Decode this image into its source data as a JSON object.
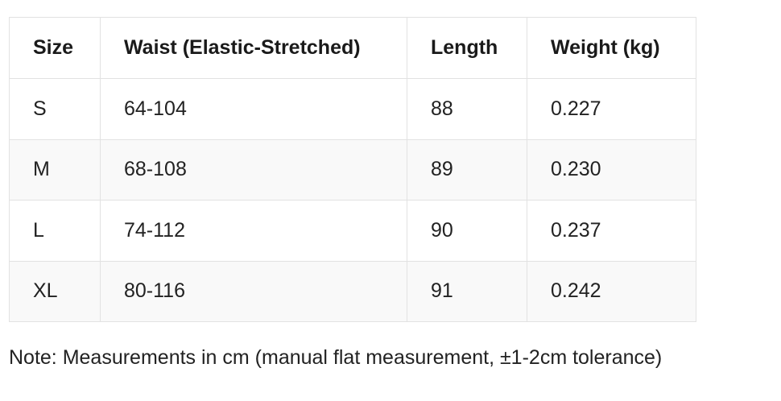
{
  "table": {
    "header": [
      "Size",
      "Waist (Elastic-Stretched)",
      "Length",
      "Weight (kg)"
    ],
    "rows": [
      [
        "S",
        "64-104",
        "88",
        "0.227"
      ],
      [
        "M",
        "68-108",
        "89",
        "0.230"
      ],
      [
        "L",
        "74-112",
        "90",
        "0.237"
      ],
      [
        "XL",
        "80-116",
        "91",
        "0.242"
      ]
    ]
  },
  "note": "Note: Measurements in cm (manual flat measurement, ±1-2cm tolerance)"
}
